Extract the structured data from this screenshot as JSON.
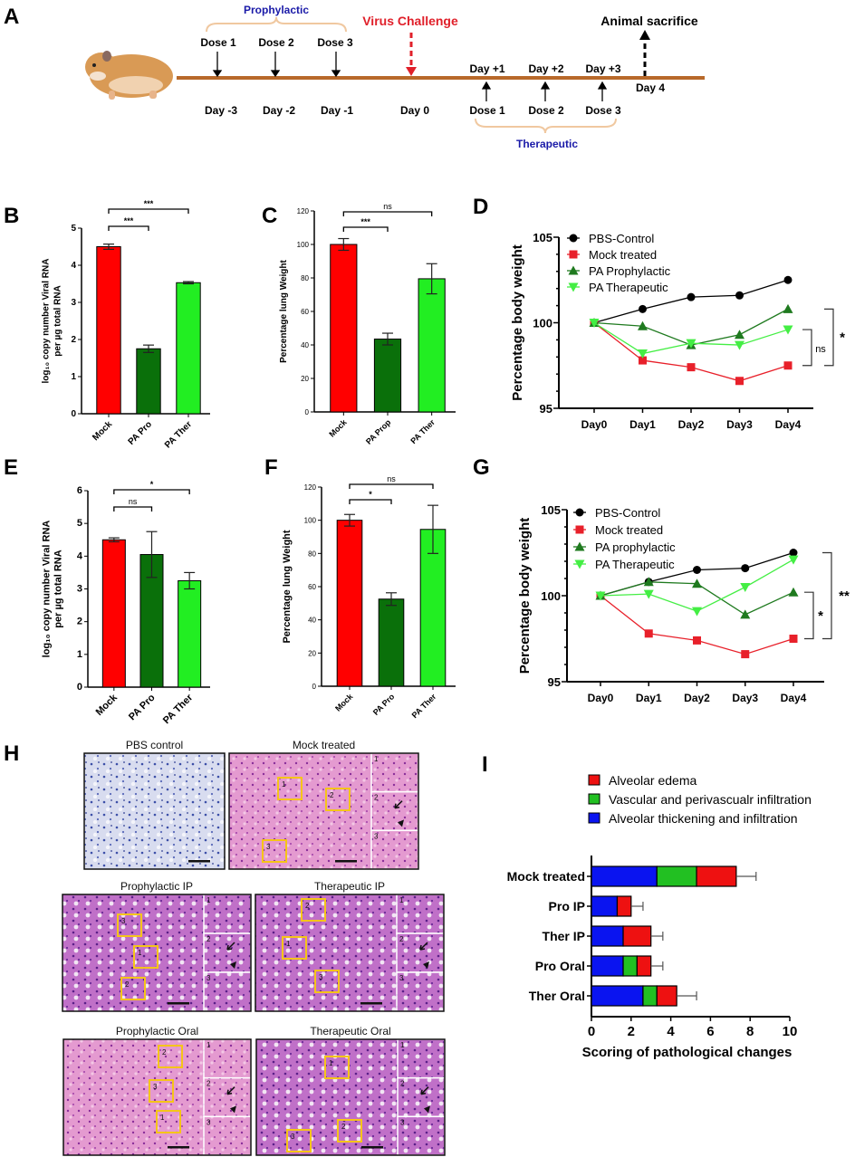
{
  "panel_labels": {
    "A": "A",
    "B": "B",
    "C": "C",
    "D": "D",
    "E": "E",
    "F": "F",
    "G": "G",
    "H": "H",
    "I": "I"
  },
  "timeline": {
    "prophylactic": "Prophylactic",
    "therapeutic": "Therapeutic",
    "virus_challenge": "Virus Challenge",
    "animal_sacrifice": "Animal sacrifice",
    "pre_doses": [
      "Dose 1",
      "Dose 2",
      "Dose 3"
    ],
    "pre_days": [
      "Day -3",
      "Day -2",
      "Day -1"
    ],
    "day0": "Day 0",
    "post_days": [
      "Day +1",
      "Day +2",
      "Day +3"
    ],
    "post_doses": [
      "Dose 1",
      "Dose 2",
      "Dose 3"
    ],
    "day4": "Day 4",
    "colors": {
      "timeline": "#b8692a",
      "prophylactic": "#1a1aa8",
      "therapeutic": "#1a1aa8",
      "virus": "#e0202a",
      "brace": "#f0c8a0"
    }
  },
  "histology": {
    "panels": [
      {
        "title": "PBS control",
        "stain": "blue"
      },
      {
        "title": "Mock treated",
        "stain": "pink",
        "insets": [
          "1",
          "2",
          "3"
        ]
      },
      {
        "title": "Prophylactic IP",
        "stain": "purple",
        "insets": [
          "1",
          "2",
          "3"
        ]
      },
      {
        "title": "Therapeutic IP",
        "stain": "purple",
        "insets": [
          "1",
          "2",
          "3"
        ]
      },
      {
        "title": "Prophylactic Oral",
        "stain": "pink",
        "insets": [
          "1",
          "2",
          "3"
        ]
      },
      {
        "title": "Therapeutic Oral",
        "stain": "purple",
        "insets": [
          "1",
          "2",
          "3"
        ]
      }
    ],
    "roi_numbers": [
      "1",
      "2",
      "3"
    ]
  },
  "chart_data": [
    {
      "panel": "B",
      "type": "bar",
      "categories": [
        "Mock",
        "PA Pro",
        "PA Ther"
      ],
      "values": [
        4.5,
        1.75,
        3.53
      ],
      "errors": [
        0.07,
        0.1,
        0.03
      ],
      "colors": [
        "#ff0000",
        "#0a700a",
        "#22ee22"
      ],
      "ylabel": [
        "log₁₀ copy number Viral RNA",
        "per µg total RNA"
      ],
      "ylim": [
        0,
        5
      ],
      "yticks": [
        0,
        1,
        2,
        3,
        4,
        5
      ],
      "significance": [
        {
          "from": 0,
          "to": 1,
          "label": "***"
        },
        {
          "from": 0,
          "to": 2,
          "label": "***"
        }
      ]
    },
    {
      "panel": "C",
      "type": "bar",
      "categories": [
        "Mock",
        "PA Prop",
        "PA Ther"
      ],
      "values": [
        100,
        43.5,
        79.5
      ],
      "errors": [
        3.5,
        3.5,
        9
      ],
      "colors": [
        "#ff0000",
        "#0a700a",
        "#22ee22"
      ],
      "ylabel": [
        "Percentage lung Weight"
      ],
      "ylim": [
        0,
        120
      ],
      "yticks": [
        0,
        20,
        40,
        60,
        80,
        100,
        120
      ],
      "significance": [
        {
          "from": 0,
          "to": 1,
          "label": "***"
        },
        {
          "from": 0,
          "to": 2,
          "label": "ns"
        }
      ]
    },
    {
      "panel": "D",
      "type": "line",
      "x": [
        "Day0",
        "Day1",
        "Day2",
        "Day3",
        "Day4"
      ],
      "ylabel": "Percentage body weight",
      "ylim": [
        95,
        105
      ],
      "yticks": [
        95,
        100,
        105
      ],
      "legend": "top-left",
      "series": [
        {
          "name": "PBS-Control",
          "marker": "circle",
          "color": "#000000",
          "values": [
            100,
            100.8,
            101.5,
            101.6,
            102.5
          ]
        },
        {
          "name": "Mock treated",
          "marker": "square",
          "color": "#e8202a",
          "values": [
            100,
            97.8,
            97.4,
            96.6,
            97.5
          ]
        },
        {
          "name": "PA Prophylactic",
          "marker": "triangle-up",
          "color": "#1f7a1f",
          "values": [
            100,
            99.8,
            98.7,
            99.3,
            100.8
          ]
        },
        {
          "name": "PA Therapeutic",
          "marker": "triangle-down",
          "color": "#44ee44",
          "values": [
            100,
            98.2,
            98.8,
            98.7,
            99.6
          ]
        }
      ],
      "significance": [
        {
          "between": [
            3,
            1
          ],
          "label": "ns"
        },
        {
          "between": [
            2,
            1
          ],
          "label": "*"
        }
      ]
    },
    {
      "panel": "E",
      "type": "bar",
      "categories": [
        "Mock",
        "PA Pro",
        "PA Ther"
      ],
      "values": [
        4.5,
        4.05,
        3.25
      ],
      "errors": [
        0.06,
        0.7,
        0.25
      ],
      "colors": [
        "#ff0000",
        "#0a700a",
        "#22ee22"
      ],
      "ylabel": [
        "log₁₀ copy number Viral RNA",
        "per µg total RNA"
      ],
      "ylim": [
        0,
        6
      ],
      "yticks": [
        0,
        1,
        2,
        3,
        4,
        5,
        6
      ],
      "significance": [
        {
          "from": 0,
          "to": 1,
          "label": "ns"
        },
        {
          "from": 0,
          "to": 2,
          "label": "*"
        }
      ]
    },
    {
      "panel": "F",
      "type": "bar",
      "categories": [
        "Mock",
        "PA Pro",
        "PA Ther"
      ],
      "values": [
        100,
        52.5,
        94.5
      ],
      "errors": [
        3.5,
        3.8,
        14.5
      ],
      "colors": [
        "#ff0000",
        "#0a700a",
        "#22ee22"
      ],
      "ylabel": [
        "Percentage lung Weight"
      ],
      "ylim": [
        0,
        120
      ],
      "yticks": [
        0,
        20,
        40,
        60,
        80,
        100,
        120
      ],
      "significance": [
        {
          "from": 0,
          "to": 1,
          "label": "*"
        },
        {
          "from": 0,
          "to": 2,
          "label": "ns"
        }
      ]
    },
    {
      "panel": "G",
      "type": "line",
      "x": [
        "Day0",
        "Day1",
        "Day2",
        "Day3",
        "Day4"
      ],
      "ylabel": "Percentage body weight",
      "ylim": [
        95,
        105
      ],
      "yticks": [
        95,
        100,
        105
      ],
      "legend": "top-left",
      "series": [
        {
          "name": "PBS-Control",
          "marker": "circle",
          "color": "#000000",
          "values": [
            100,
            100.8,
            101.5,
            101.6,
            102.5
          ]
        },
        {
          "name": "Mock treated",
          "marker": "square",
          "color": "#e8202a",
          "values": [
            100,
            97.8,
            97.4,
            96.6,
            97.5
          ]
        },
        {
          "name": "PA prophylactic",
          "marker": "triangle-up",
          "color": "#1f7a1f",
          "values": [
            100,
            100.8,
            100.7,
            98.9,
            100.2
          ]
        },
        {
          "name": "PA Therapeutic",
          "marker": "triangle-down",
          "color": "#44ee44",
          "values": [
            100,
            100.1,
            99.1,
            100.5,
            102.1
          ]
        }
      ],
      "significance": [
        {
          "between": [
            2,
            1
          ],
          "label": "*"
        },
        {
          "between": [
            0,
            1
          ],
          "label": "**"
        }
      ]
    },
    {
      "panel": "I",
      "type": "bar",
      "orientation": "horizontal",
      "stacked": true,
      "categories": [
        "Mock treated",
        "Pro IP",
        "Ther IP",
        "Pro Oral",
        "Ther Oral"
      ],
      "series": [
        {
          "name": "Alveolar thickening and infiltration",
          "color": "#0a14f0",
          "values": [
            3.3,
            1.3,
            1.6,
            1.6,
            2.6
          ]
        },
        {
          "name": "Vascular and perivascualr infiltration",
          "color": "#22c022",
          "values": [
            2.0,
            0,
            0,
            0.7,
            0.7
          ]
        },
        {
          "name": "Alveolar edema",
          "color": "#ee1111",
          "values": [
            2.0,
            0.7,
            1.4,
            0.7,
            1.0
          ]
        }
      ],
      "total_errors": [
        1.0,
        0.6,
        0.6,
        0.6,
        1.0
      ],
      "legend_order": [
        2,
        1,
        0
      ],
      "xlabel": "Scoring of pathological changes",
      "xlim": [
        0,
        10
      ],
      "xticks": [
        0,
        2,
        4,
        6,
        8,
        10
      ]
    }
  ]
}
